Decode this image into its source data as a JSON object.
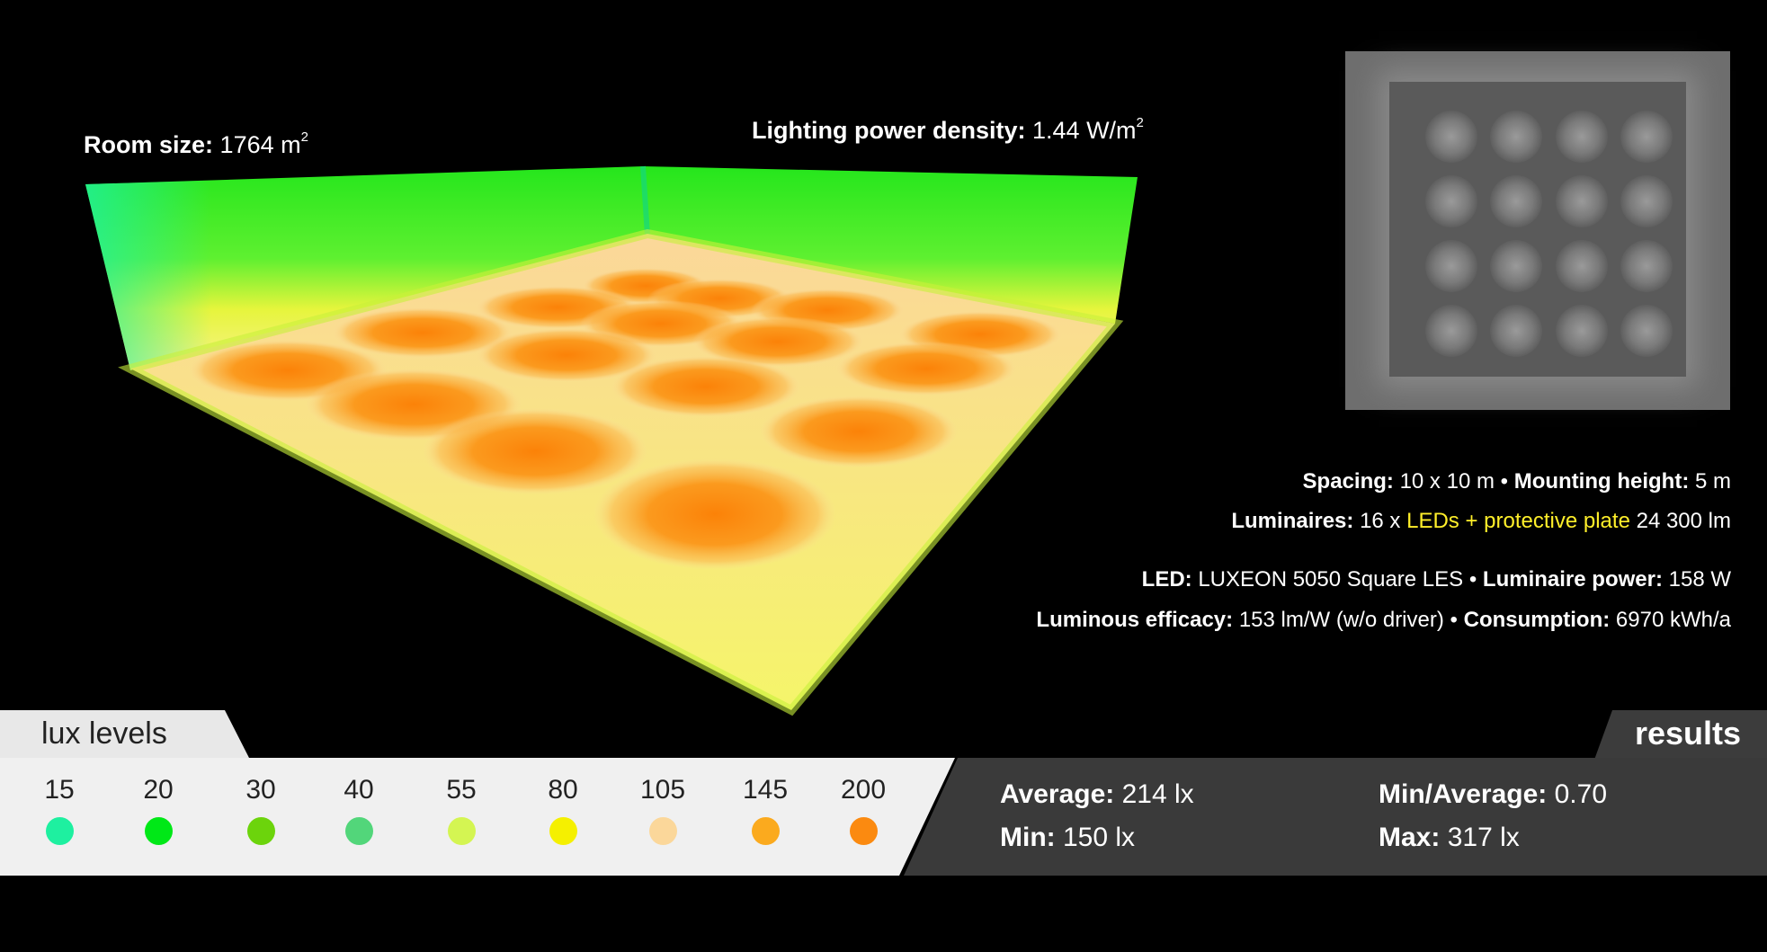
{
  "header": {
    "room_size_label": "Room size:",
    "room_size_value": "1764 m",
    "room_size_sup": "2",
    "lpd_label": "Lighting power density:",
    "lpd_value": "1.44 W/m",
    "lpd_sup": "2"
  },
  "specs": {
    "spacing_label": "Spacing:",
    "spacing_value": "10 x 10 m",
    "mounting_label": "Mounting height:",
    "mounting_value": "5 m",
    "luminaires_label": "Luminaires:",
    "luminaires_count": "16 x",
    "luminaires_type": "LEDs + protective plate",
    "luminaires_flux": "24 300 lm",
    "led_label": "LED:",
    "led_value": "LUXEON 5050 Square LES",
    "power_label": "Luminaire power:",
    "power_value": "158 W",
    "efficacy_label": "Luminous efficacy:",
    "efficacy_value": "153 lm/W (w/o driver)",
    "consumption_label": "Consumption:",
    "consumption_value": "6970 kWh/a",
    "separator": "•"
  },
  "legend": {
    "title": "lux levels",
    "items": [
      {
        "value": "15",
        "color": "#1ef0a0"
      },
      {
        "value": "20",
        "color": "#00e817"
      },
      {
        "value": "30",
        "color": "#6cd40c"
      },
      {
        "value": "40",
        "color": "#52d67a"
      },
      {
        "value": "55",
        "color": "#d4f552"
      },
      {
        "value": "80",
        "color": "#f5f000"
      },
      {
        "value": "105",
        "color": "#fbd79a"
      },
      {
        "value": "145",
        "color": "#fbaa1e"
      },
      {
        "value": "200",
        "color": "#fb8a10"
      }
    ]
  },
  "results": {
    "title": "results",
    "average_label": "Average:",
    "average_value": "214 lx",
    "min_label": "Min:",
    "min_value": "150 lx",
    "min_avg_label": "Min/Average:",
    "min_avg_value": "0.70",
    "max_label": "Max:",
    "max_value": "317 lx"
  },
  "colors": {
    "wall_top": "#22e81a",
    "floor_edge": "#f3f53a",
    "hotspot": "#fb8a10",
    "highlight_text": "#ffef2a"
  }
}
